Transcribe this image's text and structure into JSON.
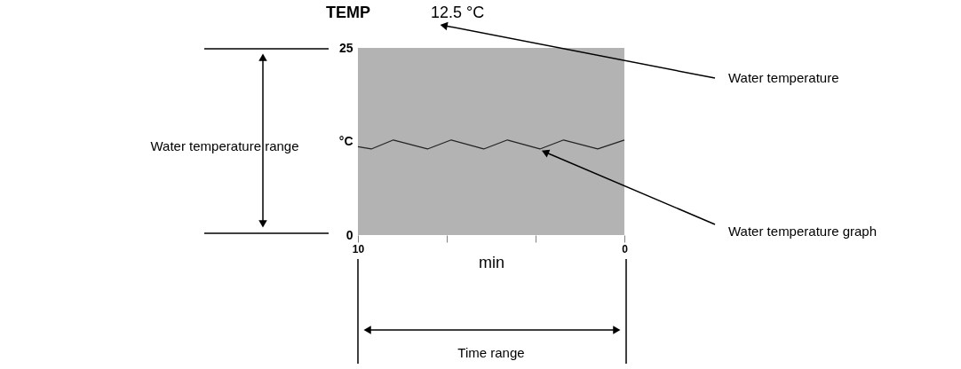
{
  "chart_data": {
    "type": "line",
    "title": "TEMP",
    "xlabel": "min",
    "ylabel": null,
    "x": [
      10,
      9.5,
      8.67,
      7.39,
      6.5,
      5.28,
      4.39,
      3.17,
      2.28,
      1.0,
      0
    ],
    "series": [
      {
        "color": "#222222",
        "values": [
          11.8,
          11.5,
          12.7,
          11.5,
          12.7,
          11.5,
          12.7,
          11.5,
          12.7,
          11.5,
          12.7
        ]
      }
    ],
    "xlim": [
      10,
      0
    ],
    "xticks": [
      10,
      {
        "value": 6.67,
        "label": null
      },
      {
        "value": 3.33,
        "label": null
      },
      0
    ],
    "ylim": [
      0,
      25
    ],
    "yticks": [
      0,
      {
        "value": 12.5,
        "label": "°C"
      },
      25
    ],
    "grid": false,
    "legend": false,
    "marker": "none",
    "line_style": "solid",
    "annotations": [
      "12.5 °C",
      "Water temperature",
      "Water temperature range",
      "Water temperature graph",
      "Time range"
    ]
  }
}
